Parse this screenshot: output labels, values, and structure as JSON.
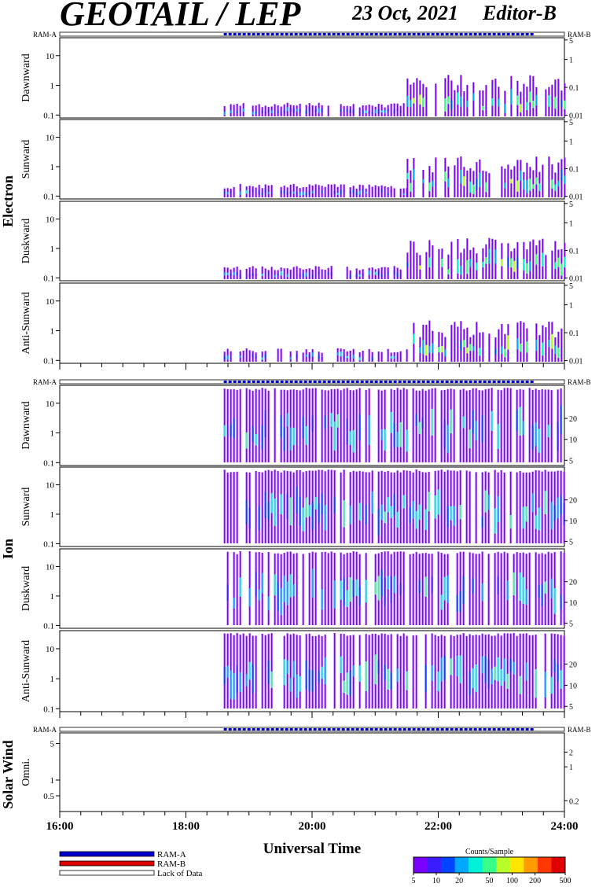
{
  "header": {
    "title": "GEOTAIL / LEP",
    "date": "23 Oct, 2021",
    "editor": "Editor-B"
  },
  "ram_labels": {
    "a": "RAM-A",
    "b": "RAM-B"
  },
  "groups": [
    {
      "name": "Electron",
      "panels": [
        "Dawnward",
        "Sunward",
        "Duskward",
        "Anti-Sunward"
      ]
    },
    {
      "name": "Ion",
      "panels": [
        "Dawnward",
        "Sunward",
        "Duskward",
        "Anti-Sunward"
      ]
    },
    {
      "name": "Solar Wind",
      "panels": [
        "Omni."
      ]
    }
  ],
  "chart_data": {
    "type": "heatmap",
    "title": "GEOTAIL / LEP",
    "xlabel": "Universal Time",
    "x_tick_labels": [
      "16:00",
      "18:00",
      "20:00",
      "22:00",
      "24:00"
    ],
    "xlim": [
      "16:00",
      "24:00"
    ],
    "data_coverage": {
      "start": "18:36",
      "end": "24:00"
    },
    "electron": {
      "y_left_ticks": [
        "10",
        "1",
        "0.1"
      ],
      "y_left_range": [
        0.08,
        40
      ],
      "y_right_ticks": [
        "5",
        "1",
        "0.1",
        "0.01"
      ],
      "y_log": true,
      "activity": [
        {
          "start": "18:36",
          "end": "21:30",
          "level": "low"
        },
        {
          "start": "21:30",
          "end": "24:00",
          "level": "moderate"
        }
      ]
    },
    "ion": {
      "y_left_ticks": [
        "10",
        "1",
        "0.1"
      ],
      "y_left_range": [
        0.08,
        40
      ],
      "y_right_ticks": [
        "20",
        "10",
        "5"
      ],
      "y_log": true,
      "activity": [
        {
          "start": "18:36",
          "end": "24:00",
          "level": "moderate"
        }
      ]
    },
    "solar_wind": {
      "y_left_ticks": [
        "5",
        "1",
        "0.5"
      ],
      "y_right_ticks": [
        "2",
        "1",
        "0.2"
      ],
      "y_log": true,
      "activity": []
    },
    "ram_status": [
      {
        "start": "16:00",
        "end": "18:36",
        "mode": "Lack of Data"
      },
      {
        "start": "18:36",
        "end": "23:30",
        "mode": "RAM-A"
      },
      {
        "start": "23:30",
        "end": "24:00",
        "mode": "Lack of Data"
      }
    ],
    "legend": [
      {
        "label": "RAM-A",
        "color": "#0000cc"
      },
      {
        "label": "RAM-B",
        "color": "#dd0000"
      },
      {
        "label": "Lack of Data",
        "color": "#ffffff"
      }
    ],
    "colorbar": {
      "title": "Counts/Sample",
      "ticks": [
        "5",
        "10",
        "20",
        "50",
        "100",
        "200",
        "500"
      ],
      "colors": [
        "#7a00ff",
        "#3b1cff",
        "#0044ff",
        "#00a8ff",
        "#00f0d8",
        "#39ff8a",
        "#b8ff2a",
        "#ffe400",
        "#ff9a00",
        "#ff3800",
        "#e00000"
      ]
    }
  }
}
